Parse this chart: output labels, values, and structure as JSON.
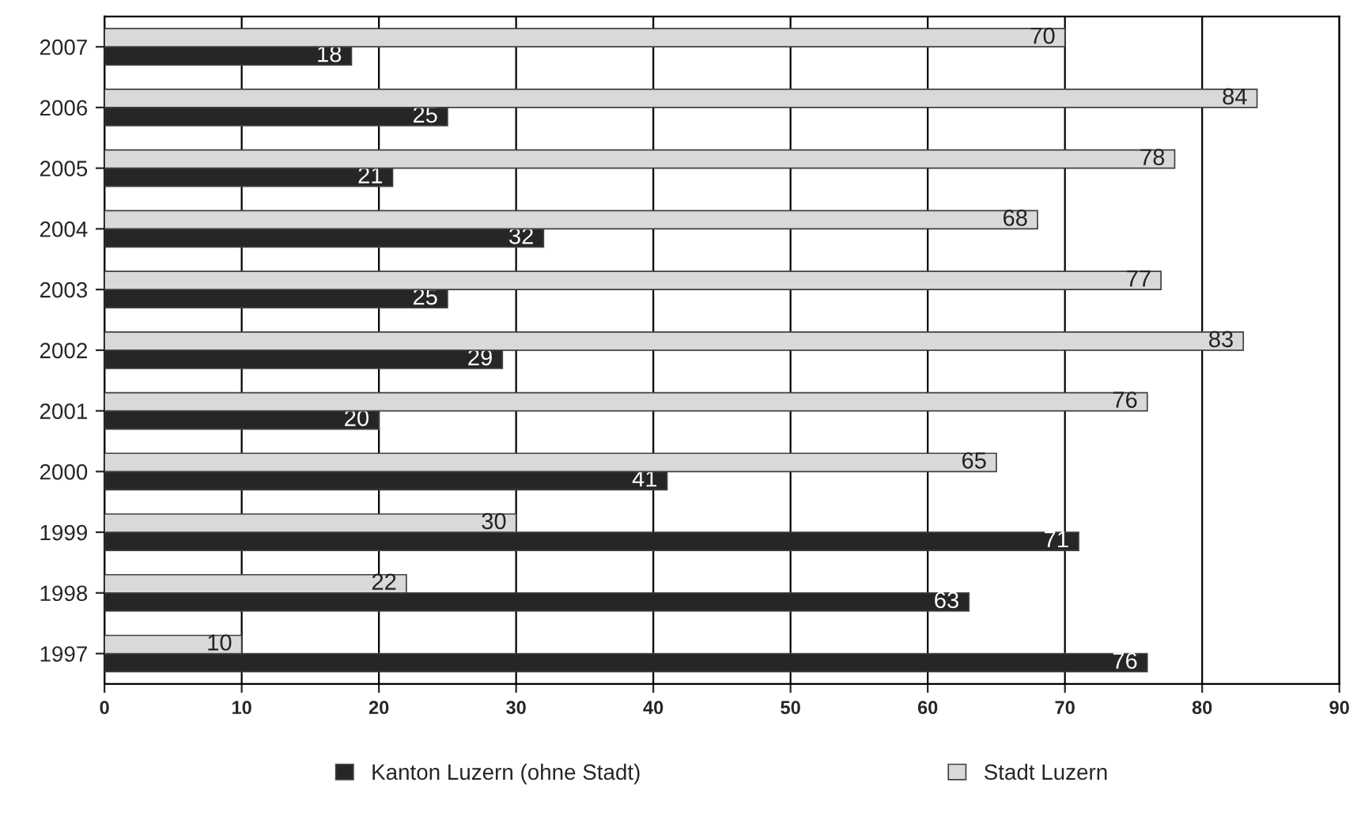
{
  "chart_data": {
    "type": "bar",
    "orientation": "horizontal",
    "categories": [
      "2007",
      "2006",
      "2005",
      "2004",
      "2003",
      "2002",
      "2001",
      "2000",
      "1999",
      "1998",
      "1997"
    ],
    "series": [
      {
        "name": "Kanton Luzern (ohne Stadt)",
        "color": "#262626",
        "values": [
          18,
          25,
          21,
          32,
          25,
          29,
          20,
          41,
          71,
          63,
          76
        ]
      },
      {
        "name": "Stadt Luzern",
        "color": "#d9d9d9",
        "values": [
          70,
          84,
          78,
          68,
          77,
          83,
          76,
          65,
          30,
          22,
          10
        ]
      }
    ],
    "xlim": [
      0,
      90
    ],
    "xticks": [
      0,
      10,
      20,
      30,
      40,
      50,
      60,
      70,
      80,
      90
    ],
    "grid": "x",
    "legend": "bottom",
    "data_labels": true
  }
}
